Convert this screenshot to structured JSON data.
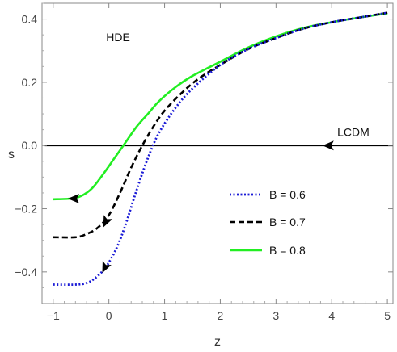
{
  "chart_data": {
    "type": "line",
    "xlabel": "z",
    "ylabel": "s",
    "xlim": [
      -1.2,
      5.1
    ],
    "ylim": [
      -0.5,
      0.45
    ],
    "xticks": [
      "−1",
      "0",
      "1",
      "2",
      "3",
      "4",
      "5"
    ],
    "xtick_values": [
      -1,
      0,
      1,
      2,
      3,
      4,
      5
    ],
    "yticks": [
      "−0.4",
      "−0.2",
      "0.0",
      "0.2",
      "0.4"
    ],
    "ytick_values": [
      -0.4,
      -0.2,
      0.0,
      0.2,
      0.4
    ],
    "annotations": [
      {
        "text": "HDE",
        "x": -0.05,
        "y": 0.33
      },
      {
        "text": "LCDM",
        "x": 4.1,
        "y": 0.03
      }
    ],
    "legend_placement": "center-right",
    "series": [
      {
        "name": "LCDM",
        "color": "#000000",
        "dash": "solid",
        "x": [
          -1.15,
          5.1
        ],
        "y": [
          0.0,
          0.0
        ],
        "arrows": [
          {
            "x": 3.95,
            "y": 0.0,
            "direction": "left"
          }
        ]
      },
      {
        "name": "B = 0.6",
        "color": "#1a1ad6",
        "dash": "dotted",
        "x": [
          -1.0,
          -0.6,
          -0.4,
          -0.25,
          -0.1,
          0.0,
          0.15,
          0.3,
          0.5,
          0.7,
          0.9,
          1.2,
          1.5,
          2.0,
          2.5,
          3.0,
          3.5,
          4.0,
          4.5,
          5.0
        ],
        "y": [
          -0.44,
          -0.44,
          -0.435,
          -0.42,
          -0.395,
          -0.37,
          -0.32,
          -0.25,
          -0.14,
          -0.04,
          0.04,
          0.12,
          0.18,
          0.255,
          0.305,
          0.34,
          0.37,
          0.39,
          0.405,
          0.42
        ],
        "arrows": [
          {
            "x": -0.07,
            "y": -0.385,
            "direction": "down-left"
          }
        ]
      },
      {
        "name": "B = 0.7",
        "color": "#000000",
        "dash": "dashed",
        "x": [
          -1.0,
          -0.6,
          -0.4,
          -0.2,
          0.0,
          0.2,
          0.4,
          0.6,
          0.8,
          1.0,
          1.3,
          1.6,
          2.0,
          2.5,
          3.0,
          3.5,
          4.0,
          4.5,
          5.0
        ],
        "y": [
          -0.29,
          -0.29,
          -0.28,
          -0.26,
          -0.22,
          -0.15,
          -0.07,
          0.0,
          0.06,
          0.11,
          0.165,
          0.21,
          0.255,
          0.305,
          0.34,
          0.37,
          0.39,
          0.405,
          0.42
        ],
        "arrows": [
          {
            "x": -0.05,
            "y": -0.24,
            "direction": "down-left"
          }
        ]
      },
      {
        "name": "B = 0.8",
        "color": "#22ee22",
        "dash": "solid",
        "x": [
          -1.0,
          -0.7,
          -0.5,
          -0.3,
          -0.1,
          0.1,
          0.3,
          0.5,
          0.7,
          0.9,
          1.2,
          1.5,
          2.0,
          2.5,
          3.0,
          3.5,
          4.0,
          4.5,
          5.0
        ],
        "y": [
          -0.17,
          -0.168,
          -0.16,
          -0.135,
          -0.09,
          -0.04,
          0.01,
          0.06,
          0.1,
          0.14,
          0.185,
          0.22,
          0.265,
          0.31,
          0.345,
          0.372,
          0.39,
          0.405,
          0.418
        ],
        "arrows": [
          {
            "x": -0.62,
            "y": -0.168,
            "direction": "left"
          }
        ]
      }
    ],
    "legend": [
      {
        "label": "B = 0.6",
        "color": "#1a1ad6",
        "dash": "dotted"
      },
      {
        "label": "B = 0.7",
        "color": "#000000",
        "dash": "dashed"
      },
      {
        "label": "B = 0.8",
        "color": "#22ee22",
        "dash": "solid"
      }
    ]
  }
}
